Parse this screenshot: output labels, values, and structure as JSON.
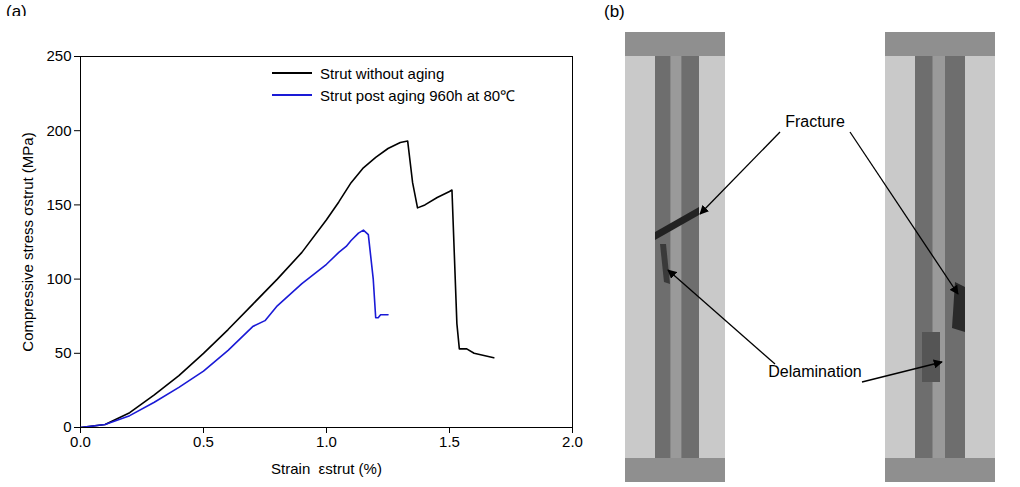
{
  "panel_labels": [
    "(a)",
    "(b)"
  ],
  "chart_data": {
    "type": "line",
    "xlabel": "Strain  εstrut (%)",
    "ylabel": "Compressive stress σstrut (MPa)",
    "xlim": [
      0,
      2.0
    ],
    "ylim": [
      0,
      250
    ],
    "xticks": [
      {
        "value": 0,
        "label": "0.0"
      },
      {
        "value": 0.5,
        "label": "0.5"
      },
      {
        "value": 1.0,
        "label": "1.0"
      },
      {
        "value": 1.5,
        "label": "1.5"
      },
      {
        "value": 2.0,
        "label": "2.0"
      }
    ],
    "yticks": [
      0,
      50,
      100,
      150,
      200,
      250
    ],
    "legend": "top-right",
    "series": [
      {
        "name": "Strut without aging",
        "color": "#000000",
        "x": [
          0,
          0.1,
          0.2,
          0.3,
          0.4,
          0.5,
          0.6,
          0.7,
          0.8,
          0.9,
          1.0,
          1.05,
          1.1,
          1.15,
          1.2,
          1.25,
          1.3,
          1.33,
          1.35,
          1.37,
          1.4,
          1.45,
          1.5,
          1.51,
          1.53,
          1.54,
          1.57,
          1.6,
          1.68
        ],
        "values": [
          0,
          2,
          10,
          22,
          35,
          50,
          66,
          83,
          100,
          118,
          140,
          152,
          165,
          175,
          182,
          188,
          192,
          193,
          165,
          148,
          150,
          155,
          159,
          160,
          70,
          53,
          53,
          50,
          47
        ]
      },
      {
        "name": "Strut post aging 960h at 80℃",
        "color": "#1a1ad6",
        "x": [
          0,
          0.1,
          0.2,
          0.3,
          0.4,
          0.5,
          0.6,
          0.7,
          0.75,
          0.8,
          0.9,
          1.0,
          1.05,
          1.08,
          1.1,
          1.13,
          1.15,
          1.17,
          1.19,
          1.2,
          1.21,
          1.22,
          1.25
        ],
        "values": [
          0,
          2,
          8,
          17,
          27,
          38,
          52,
          68,
          72,
          82,
          97,
          110,
          118,
          122,
          126,
          131,
          133,
          130,
          100,
          74,
          74,
          76,
          76
        ]
      }
    ]
  },
  "photo": {
    "annotations": [
      "Fracture",
      "Delamination"
    ]
  }
}
